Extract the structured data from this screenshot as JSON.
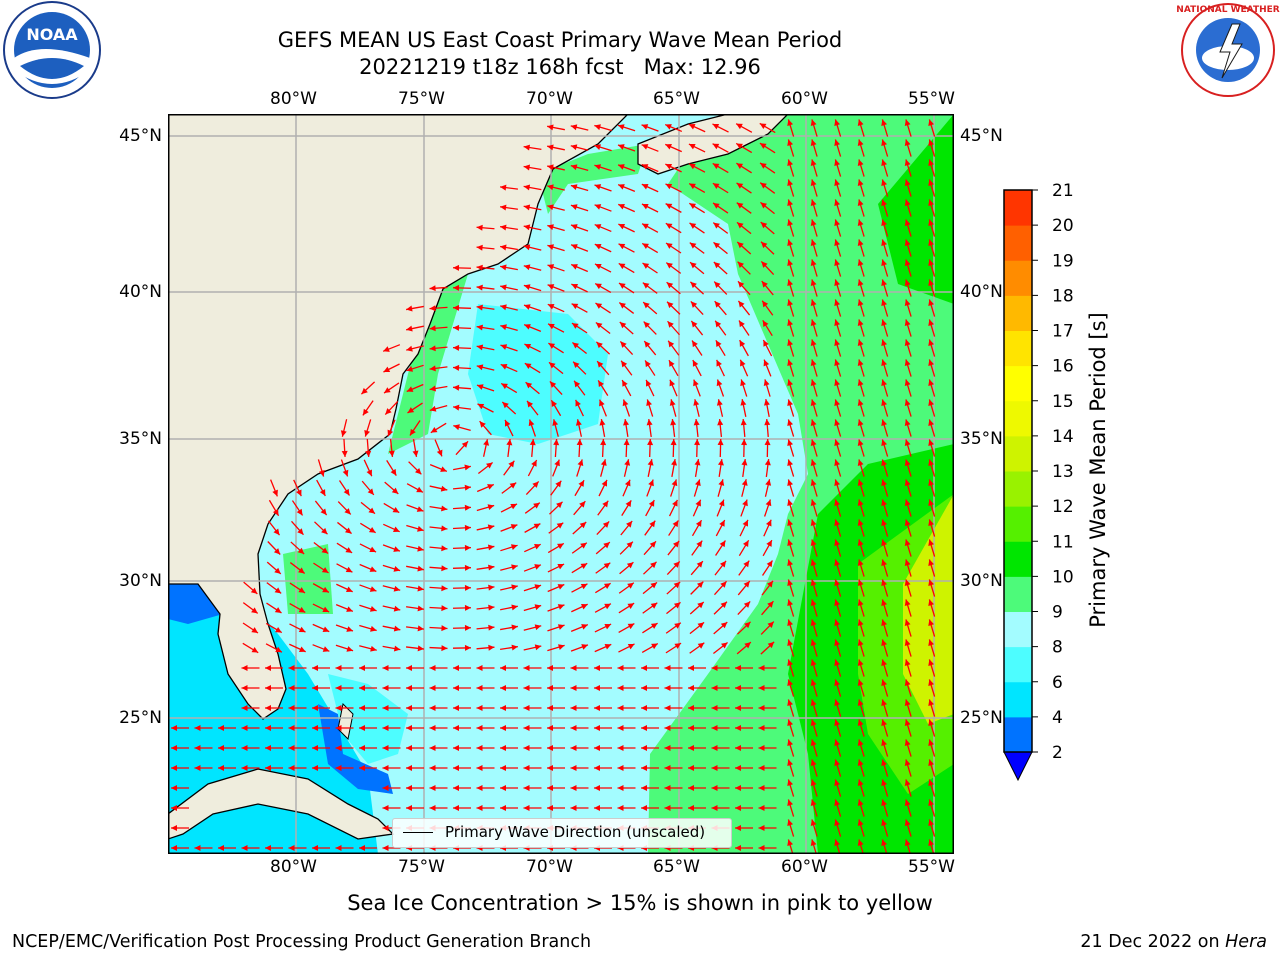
{
  "header": {
    "title_line1": "GEFS MEAN US East Coast Primary Wave Mean Period",
    "title_line2": "20221219 t18z 168h fcst   Max: 12.96"
  },
  "logos": {
    "noara_alt": "NOAA",
    "nws_text": "NATIONAL WEATHER SERVICE"
  },
  "map": {
    "lon_labels": [
      "80°W",
      "75°W",
      "70°W",
      "65°W",
      "60°W",
      "55°W"
    ],
    "lat_labels": [
      "45°N",
      "40°N",
      "35°N",
      "30°N",
      "25°N"
    ],
    "legend_label": "Primary Wave Direction (unscaled)",
    "land_color": "#efeddd",
    "grid_color": "#b0b0b0",
    "arrow_color": "#ff0000"
  },
  "colorbar": {
    "title": "Primary Wave Mean Period [s]",
    "ticks": [
      "2",
      "4",
      "6",
      "8",
      "9",
      "10",
      "11",
      "12",
      "13",
      "14",
      "15",
      "16",
      "17",
      "18",
      "19",
      "20",
      "21"
    ],
    "colors": [
      "#0073ff",
      "#00e5ff",
      "#4dfdff",
      "#a3fcff",
      "#4dfa7a",
      "#00e600",
      "#55f000",
      "#99f200",
      "#cef300",
      "#eef900",
      "#ffff00",
      "#ffe400",
      "#ffb900",
      "#ff8c00",
      "#ff6000",
      "#ff3500",
      "#ff0000"
    ],
    "extend_color": "#0000ff"
  },
  "notes": {
    "sea_ice": "Sea Ice Concentration > 15% is shown in pink to yellow"
  },
  "footer": {
    "left": "NCEP/EMC/Verification Post Processing Product Generation Branch",
    "right_date": "21 Dec 2022 on ",
    "right_machine": "Hera"
  }
}
